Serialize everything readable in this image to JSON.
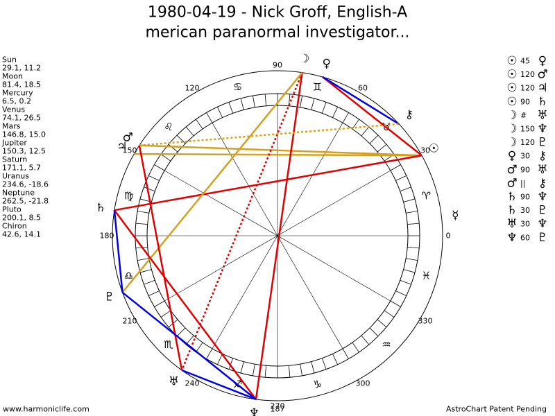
{
  "header": {
    "title_lines": [
      "1980-04-19 - Nick Groff, English-A",
      "merican paranormal investigator..."
    ]
  },
  "planets": [
    {
      "name": "Sun",
      "coords": "29.1, 11.2",
      "glyph": "☉"
    },
    {
      "name": "Moon",
      "coords": "81.4, 18.5",
      "glyph": "☽"
    },
    {
      "name": "Mercury",
      "coords": "6.5, 0.2",
      "glyph": "☿"
    },
    {
      "name": "Venus",
      "coords": "74.1, 26.5",
      "glyph": "♀"
    },
    {
      "name": "Mars",
      "coords": "146.8, 15.0",
      "glyph": "♂"
    },
    {
      "name": "Jupiter",
      "coords": "150.3, 12.5",
      "glyph": "♃"
    },
    {
      "name": "Saturn",
      "coords": "171.1, 5.7",
      "glyph": "♄"
    },
    {
      "name": "Uranus",
      "coords": "234.6, -18.6",
      "glyph": "♅"
    },
    {
      "name": "Neptune",
      "coords": "262.5, -21.8",
      "glyph": "♆"
    },
    {
      "name": "Pluto",
      "coords": "200.1, 8.5",
      "glyph": "♇"
    },
    {
      "name": "Chiron",
      "coords": "42.6, 14.1",
      "glyph": "⚷"
    }
  ],
  "aspects": [
    {
      "p1": "☉",
      "aspect": "45",
      "p2": "♀",
      "color": "#e00000",
      "dotted": false
    },
    {
      "p1": "☉",
      "aspect": "120",
      "p2": "♂",
      "color": "#d4a020",
      "dotted": false
    },
    {
      "p1": "☉",
      "aspect": "120",
      "p2": "♃",
      "color": "#d4a020",
      "dotted": false
    },
    {
      "p1": "☉",
      "aspect": "90",
      "p2": "♄",
      "color": "#e00000",
      "dotted": false
    },
    {
      "p1": "☽",
      "aspect": "#",
      "p2": "♅",
      "color": "#e00000",
      "dotted": true
    },
    {
      "p1": "☽",
      "aspect": "150",
      "p2": "♆",
      "color": "#e00000",
      "dotted": false
    },
    {
      "p1": "☽",
      "aspect": "120",
      "p2": "♇",
      "color": "#d4a020",
      "dotted": false
    },
    {
      "p1": "♀",
      "aspect": "30",
      "p2": "⚷",
      "color": "#0000e0",
      "dotted": false
    },
    {
      "p1": "♂",
      "aspect": "90",
      "p2": "♅",
      "color": "#e00000",
      "dotted": false
    },
    {
      "p1": "♂",
      "aspect": "||",
      "p2": "⚷",
      "color": "#d4a020",
      "dotted": true
    },
    {
      "p1": "♄",
      "aspect": "90",
      "p2": "♆",
      "color": "#e00000",
      "dotted": false
    },
    {
      "p1": "♄",
      "aspect": "30",
      "p2": "♇",
      "color": "#0000e0",
      "dotted": false
    },
    {
      "p1": "♅",
      "aspect": "30",
      "p2": "♆",
      "color": "#0000e0",
      "dotted": false
    },
    {
      "p1": "♆",
      "aspect": "60",
      "p2": "♇",
      "color": "#0000e0",
      "dotted": false
    }
  ],
  "wheel": {
    "degrees": [
      0,
      30,
      60,
      90,
      120,
      150,
      180,
      210,
      240,
      270,
      300,
      330
    ],
    "signs": [
      "♈",
      "♉",
      "♊",
      "♋",
      "♌",
      "♍",
      "♎",
      "♏",
      "♐",
      "♑",
      "♒",
      "♓"
    ],
    "bottom_label": "187"
  },
  "footer": {
    "left": "www.harmoniclife.com",
    "right": "AstroChart Patent Pending"
  }
}
